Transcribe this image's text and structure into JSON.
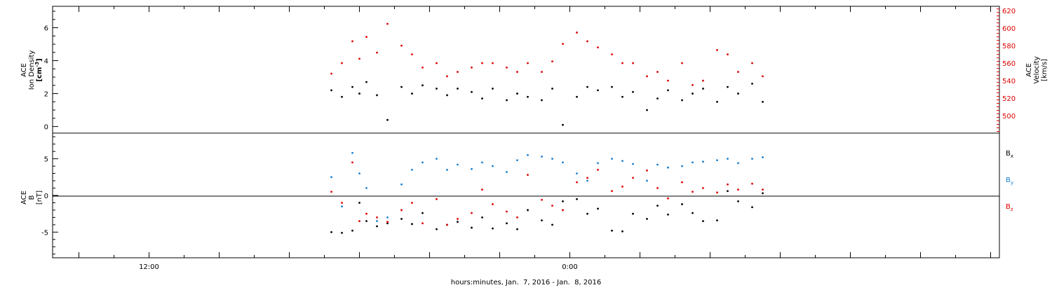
{
  "chart_data": [
    {
      "type": "scatter",
      "panel": "top",
      "ylabel": [
        "ACE",
        "Ion Density"
      ],
      "ylabel_unit": "[cm",
      "ylabel_unit_sup": "-3",
      "ylabel_unit_end": "]",
      "ylim": [
        -0.4,
        7.3
      ],
      "yticks": [
        "0",
        "2",
        "4",
        "6"
      ],
      "y2label": [
        "ACE",
        "Velocity"
      ],
      "y2label_unit": "[km/s]",
      "y2lim": [
        480,
        625
      ],
      "y2ticks": [
        "500",
        "520",
        "540",
        "560",
        "580",
        "600",
        "620"
      ],
      "series": [
        {
          "axis": "left",
          "color": "#000000",
          "x": [
            -6.8,
            -6.5,
            -6.2,
            -6.0,
            -5.8,
            -5.5,
            -5.2,
            -4.8,
            -4.5,
            -4.2,
            -3.8,
            -3.5,
            -3.2,
            -2.8,
            -2.5,
            -2.2,
            -1.8,
            -1.5,
            -1.2,
            -0.8,
            -0.5,
            -0.2,
            0.2,
            0.5,
            0.8,
            1.2,
            1.5,
            1.8,
            2.2,
            2.5,
            2.8,
            3.2,
            3.5,
            3.8,
            4.2,
            4.5,
            4.8,
            5.2,
            5.5
          ],
          "values": [
            2.2,
            1.8,
            2.4,
            2.0,
            2.7,
            1.9,
            0.4,
            2.4,
            2.0,
            2.5,
            2.3,
            1.9,
            2.3,
            2.1,
            1.7,
            2.3,
            1.6,
            2.0,
            1.8,
            1.6,
            2.3,
            0.1,
            1.8,
            2.4,
            2.2,
            2.4,
            1.8,
            2.1,
            1.0,
            1.7,
            2.2,
            1.6,
            2.0,
            2.3,
            1.5,
            2.4,
            2.0,
            2.6,
            1.5
          ]
        },
        {
          "axis": "right",
          "color": "#e00000",
          "x": [
            -6.8,
            -6.5,
            -6.2,
            -6.0,
            -5.8,
            -5.5,
            -5.2,
            -4.8,
            -4.5,
            -4.2,
            -3.8,
            -3.5,
            -3.2,
            -2.8,
            -2.5,
            -2.2,
            -1.8,
            -1.5,
            -1.2,
            -0.8,
            -0.5,
            -0.2,
            0.2,
            0.5,
            0.8,
            1.2,
            1.5,
            1.8,
            2.2,
            2.5,
            2.8,
            3.2,
            3.5,
            3.8,
            4.2,
            4.5,
            4.8,
            5.2,
            5.5
          ],
          "values": [
            548,
            560,
            585,
            565,
            590,
            572,
            605,
            580,
            570,
            555,
            560,
            545,
            550,
            555,
            560,
            560,
            555,
            550,
            560,
            550,
            562,
            582,
            595,
            585,
            578,
            570,
            560,
            560,
            545,
            550,
            540,
            560,
            535,
            540,
            575,
            570,
            550,
            560,
            545
          ]
        }
      ]
    },
    {
      "type": "scatter",
      "panel": "bottom",
      "ylabel": [
        "ACE",
        "B",
        "[nT]"
      ],
      "ylim": [
        -8.5,
        8.5
      ],
      "yticks": [
        "-5",
        "0",
        "5"
      ],
      "xlabel": "hours:minutes, Jan.  7, 2016 - Jan.  8, 2016",
      "xlim": [
        -14.75,
        12.25
      ],
      "xticks": [
        {
          "x": -12,
          "label": "12:00"
        },
        {
          "x": 0,
          "label": "0:00"
        }
      ],
      "legend": [
        {
          "name": "B",
          "sub": "x",
          "color": "#000000"
        },
        {
          "name": "B",
          "sub": "y",
          "color": "#1a7fd0"
        },
        {
          "name": "B",
          "sub": "z",
          "color": "#e00000"
        }
      ],
      "series": [
        {
          "name": "Bx",
          "color": "#000000",
          "x": [
            -6.8,
            -6.5,
            -6.2,
            -6.0,
            -5.8,
            -5.5,
            -5.2,
            -4.8,
            -4.5,
            -4.2,
            -3.8,
            -3.5,
            -3.2,
            -2.8,
            -2.5,
            -2.2,
            -1.8,
            -1.5,
            -1.2,
            -0.8,
            -0.5,
            -0.2,
            0.2,
            0.5,
            0.8,
            1.2,
            1.5,
            1.8,
            2.2,
            2.5,
            2.8,
            3.2,
            3.5,
            3.8,
            4.2,
            4.5,
            4.8,
            5.2,
            5.5
          ],
          "values": [
            -5.0,
            -5.1,
            -4.8,
            -1.0,
            -3.5,
            -4.2,
            -3.8,
            -3.2,
            -3.9,
            -2.4,
            -4.6,
            -4.0,
            -3.6,
            -4.4,
            -3.0,
            -4.5,
            -3.8,
            -4.6,
            -2.0,
            -3.4,
            -4.0,
            -0.8,
            -0.5,
            -2.5,
            -1.8,
            -4.8,
            -4.9,
            -2.5,
            -3.2,
            -1.4,
            -2.6,
            -1.2,
            -2.4,
            -3.5,
            -3.4,
            0.6,
            -0.8,
            -1.6,
            0.3
          ]
        },
        {
          "name": "By",
          "color": "#1a7fd0",
          "x": [
            -6.8,
            -6.5,
            -6.2,
            -6.0,
            -5.8,
            -5.5,
            -5.2,
            -4.8,
            -4.5,
            -4.2,
            -3.8,
            -3.5,
            -3.2,
            -2.8,
            -2.5,
            -2.2,
            -1.8,
            -1.5,
            -1.2,
            -0.8,
            -0.5,
            -0.2,
            0.2,
            0.5,
            0.8,
            1.2,
            1.5,
            1.8,
            2.2,
            2.5,
            2.8,
            3.2,
            3.5,
            3.8,
            4.2,
            4.5,
            4.8,
            5.2,
            5.5
          ],
          "values": [
            2.5,
            -1.5,
            5.8,
            3.0,
            1.0,
            -3.5,
            -3.0,
            1.5,
            3.5,
            4.5,
            5.0,
            3.5,
            4.2,
            3.6,
            4.5,
            4.0,
            3.2,
            4.8,
            5.5,
            5.3,
            5.0,
            4.5,
            3.0,
            2.0,
            4.4,
            5.0,
            4.7,
            4.3,
            2.0,
            4.2,
            3.8,
            4.0,
            4.5,
            4.6,
            4.8,
            5.0,
            4.4,
            5.0,
            5.2
          ]
        },
        {
          "name": "Bz",
          "color": "#e00000",
          "x": [
            -6.8,
            -6.5,
            -6.2,
            -6.0,
            -5.8,
            -5.5,
            -5.2,
            -4.8,
            -4.5,
            -4.2,
            -3.8,
            -3.5,
            -3.2,
            -2.8,
            -2.5,
            -2.2,
            -1.8,
            -1.5,
            -1.2,
            -0.8,
            -0.5,
            -0.2,
            0.2,
            0.5,
            0.8,
            1.2,
            1.5,
            1.8,
            2.2,
            2.5,
            2.8,
            3.2,
            3.5,
            3.8,
            4.2,
            4.5,
            4.8,
            5.2,
            5.5
          ],
          "values": [
            0.5,
            -1.0,
            4.5,
            -3.5,
            -2.5,
            -3.0,
            -3.6,
            -2.0,
            -1.0,
            -3.8,
            -0.5,
            -4.0,
            -3.2,
            -2.4,
            0.8,
            -1.2,
            -2.2,
            -3.0,
            2.8,
            -0.6,
            -1.4,
            -2.0,
            1.8,
            2.4,
            3.5,
            0.6,
            1.2,
            2.4,
            3.4,
            1.0,
            -0.4,
            1.8,
            0.5,
            1.0,
            0.4,
            1.5,
            0.8,
            1.6,
            0.8
          ]
        }
      ]
    }
  ]
}
